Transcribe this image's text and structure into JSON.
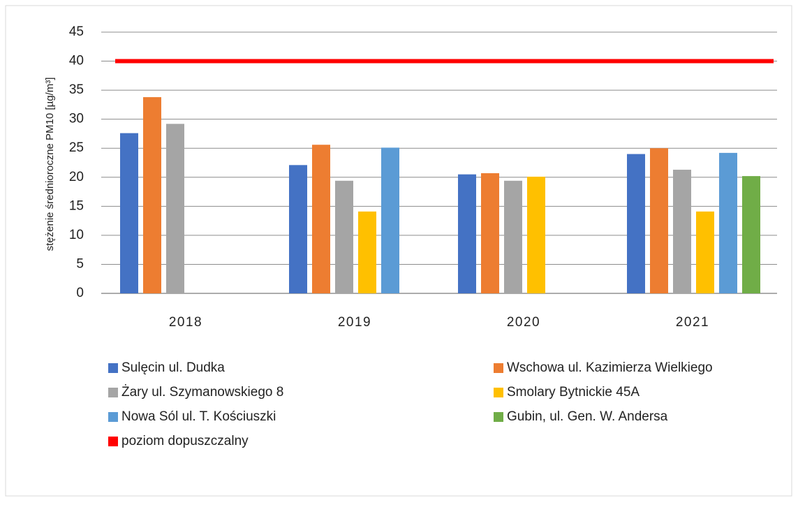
{
  "chart_data": {
    "type": "bar",
    "ylabel": "stężenie średnioroczne PM10 [µg/m³]",
    "categories": [
      "2018",
      "2019",
      "2020",
      "2021"
    ],
    "series": [
      {
        "name": "Sulęcin ul. Dudka",
        "color": "#4472c4",
        "values": [
          27.6,
          22.1,
          20.5,
          24.0
        ]
      },
      {
        "name": "Wschowa ul. Kazimierza Wielkiego",
        "color": "#ed7d31",
        "values": [
          33.8,
          25.6,
          20.7,
          25.0
        ]
      },
      {
        "name": "Żary ul. Szymanowskiego 8",
        "color": "#a5a5a5",
        "values": [
          29.2,
          19.4,
          19.4,
          21.3
        ]
      },
      {
        "name": "Smolary Bytnickie 45A",
        "color": "#ffc000",
        "values": [
          null,
          14.1,
          20.1,
          14.1
        ]
      },
      {
        "name": "Nowa Sól ul. T. Kościuszki",
        "color": "#5b9bd5",
        "values": [
          null,
          25.1,
          null,
          24.2
        ]
      },
      {
        "name": "Gubin, ul. Gen. W. Andersa",
        "color": "#70ad47",
        "values": [
          null,
          null,
          null,
          20.2
        ]
      },
      {
        "name": "poziom dopuszczalny",
        "color": "#ff0000",
        "type": "line",
        "values": [
          40,
          40,
          40,
          40
        ]
      }
    ],
    "ylim": [
      0,
      45
    ],
    "yticks": [
      0,
      5,
      10,
      15,
      20,
      25,
      30,
      35,
      40,
      45
    ],
    "grid": true,
    "legend": "bottom"
  }
}
